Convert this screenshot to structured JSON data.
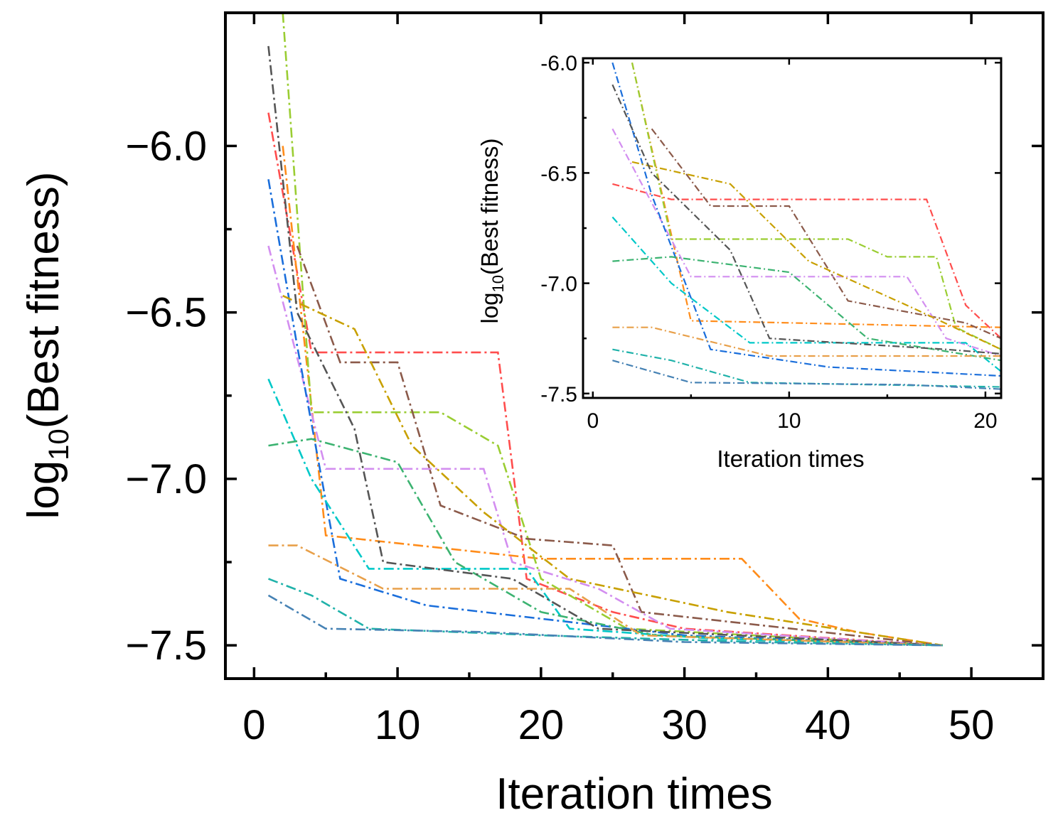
{
  "chart_data": [
    {
      "type": "line",
      "xlabel": "Iteration times",
      "ylabel_main": "log",
      "ylabel_sub": "10",
      "ylabel_rest": "(Best fitness)",
      "xlim": [
        -2,
        55
      ],
      "ylim": [
        -7.6,
        -5.6
      ],
      "xticks": [
        0,
        10,
        20,
        30,
        40,
        50
      ],
      "xtick_labels": [
        "0",
        "10",
        "20",
        "30",
        "40",
        "50"
      ],
      "yticks": [
        -6.0,
        -6.5,
        -7.0,
        -7.5
      ],
      "ytick_labels": [
        "−6.0",
        "−6.5",
        "−7.0",
        "−7.5"
      ],
      "line_style": "dash-dot",
      "series": [
        {
          "color": "#ff4d4d",
          "points": [
            [
              1,
              -5.9
            ],
            [
              4,
              -6.62
            ],
            [
              17,
              -6.62
            ],
            [
              19,
              -7.3
            ],
            [
              25,
              -7.4
            ],
            [
              30,
              -7.45
            ],
            [
              48,
              -7.5
            ]
          ]
        },
        {
          "color": "#ff8c1a",
          "points": [
            [
              2,
              -6.0
            ],
            [
              5,
              -7.17
            ],
            [
              20,
              -7.24
            ],
            [
              34,
              -7.24
            ],
            [
              38,
              -7.42
            ],
            [
              42,
              -7.46
            ],
            [
              48,
              -7.5
            ]
          ]
        },
        {
          "color": "#9acd32",
          "points": [
            [
              2,
              -5.6
            ],
            [
              4,
              -6.8
            ],
            [
              13,
              -6.8
            ],
            [
              17,
              -6.9
            ],
            [
              20,
              -7.3
            ],
            [
              26,
              -7.45
            ],
            [
              48,
              -7.5
            ]
          ]
        },
        {
          "color": "#8b5a4a",
          "points": [
            [
              3,
              -6.3
            ],
            [
              6,
              -6.65
            ],
            [
              10,
              -6.65
            ],
            [
              13,
              -7.08
            ],
            [
              19,
              -7.18
            ],
            [
              25,
              -7.2
            ],
            [
              27,
              -7.4
            ],
            [
              48,
              -7.5
            ]
          ]
        },
        {
          "color": "#d38ef0",
          "points": [
            [
              1,
              -6.3
            ],
            [
              5,
              -6.97
            ],
            [
              16,
              -6.97
            ],
            [
              18,
              -7.25
            ],
            [
              24,
              -7.33
            ],
            [
              29,
              -7.45
            ],
            [
              48,
              -7.5
            ]
          ]
        },
        {
          "color": "#1a6edb",
          "points": [
            [
              1,
              -6.1
            ],
            [
              3,
              -6.6
            ],
            [
              6,
              -7.3
            ],
            [
              12,
              -7.38
            ],
            [
              20,
              -7.42
            ],
            [
              30,
              -7.47
            ],
            [
              48,
              -7.5
            ]
          ]
        },
        {
          "color": "#00c8c8",
          "points": [
            [
              1,
              -6.7
            ],
            [
              4,
              -7.0
            ],
            [
              8,
              -7.27
            ],
            [
              19,
              -7.27
            ],
            [
              22,
              -7.45
            ],
            [
              32,
              -7.48
            ],
            [
              48,
              -7.5
            ]
          ]
        },
        {
          "color": "#3cb371",
          "points": [
            [
              1,
              -6.9
            ],
            [
              4,
              -6.88
            ],
            [
              10,
              -6.95
            ],
            [
              14,
              -7.25
            ],
            [
              20,
              -7.4
            ],
            [
              28,
              -7.47
            ],
            [
              48,
              -7.5
            ]
          ]
        },
        {
          "color": "#c8a000",
          "points": [
            [
              2,
              -6.45
            ],
            [
              7,
              -6.55
            ],
            [
              11,
              -6.9
            ],
            [
              16,
              -7.1
            ],
            [
              22,
              -7.3
            ],
            [
              33,
              -7.4
            ],
            [
              48,
              -7.5
            ]
          ]
        },
        {
          "color": "#555555",
          "points": [
            [
              1,
              -5.7
            ],
            [
              3,
              -6.5
            ],
            [
              7,
              -6.85
            ],
            [
              9,
              -7.25
            ],
            [
              18,
              -7.3
            ],
            [
              24,
              -7.45
            ],
            [
              48,
              -7.5
            ]
          ]
        },
        {
          "color": "#e8a04a",
          "points": [
            [
              1,
              -7.2
            ],
            [
              3,
              -7.2
            ],
            [
              9,
              -7.33
            ],
            [
              22,
              -7.33
            ],
            [
              27,
              -7.47
            ],
            [
              48,
              -7.5
            ]
          ]
        },
        {
          "color": "#20b2aa",
          "points": [
            [
              1,
              -7.3
            ],
            [
              4,
              -7.35
            ],
            [
              8,
              -7.45
            ],
            [
              20,
              -7.47
            ],
            [
              35,
              -7.49
            ],
            [
              48,
              -7.5
            ]
          ]
        },
        {
          "color": "#4682b4",
          "points": [
            [
              1,
              -7.35
            ],
            [
              5,
              -7.45
            ],
            [
              16,
              -7.46
            ],
            [
              30,
              -7.49
            ],
            [
              48,
              -7.5
            ]
          ]
        }
      ]
    },
    {
      "type": "line",
      "xlabel": "Iteration times",
      "ylabel_main": "log",
      "ylabel_sub": "10",
      "ylabel_rest": "(Best fitness)",
      "xlim": [
        -0.5,
        20.8
      ],
      "ylim": [
        -7.52,
        -5.98
      ],
      "xticks": [
        0,
        10,
        20
      ],
      "xtick_labels": [
        "0",
        "10",
        "20"
      ],
      "yticks": [
        -6.0,
        -6.5,
        -7.0,
        -7.5
      ],
      "ytick_labels": [
        "-6.0",
        "-6.5",
        "-7.0",
        "-7.5"
      ],
      "line_style": "dash-dot",
      "series": [
        {
          "color": "#ff4d4d",
          "points": [
            [
              1,
              -6.55
            ],
            [
              4,
              -6.62
            ],
            [
              17,
              -6.62
            ],
            [
              19,
              -7.1
            ],
            [
              20.8,
              -7.25
            ]
          ]
        },
        {
          "color": "#ff8c1a",
          "points": [
            [
              2,
              -6.0
            ],
            [
              5,
              -7.17
            ],
            [
              20.8,
              -7.2
            ]
          ]
        },
        {
          "color": "#9acd32",
          "points": [
            [
              2,
              -6.0
            ],
            [
              4,
              -6.8
            ],
            [
              13,
              -6.8
            ],
            [
              15,
              -6.88
            ],
            [
              17.5,
              -6.88
            ],
            [
              18.5,
              -7.2
            ],
            [
              20.8,
              -7.3
            ]
          ]
        },
        {
          "color": "#8b5a4a",
          "points": [
            [
              3,
              -6.3
            ],
            [
              6,
              -6.65
            ],
            [
              10,
              -6.65
            ],
            [
              13,
              -7.08
            ],
            [
              19,
              -7.18
            ],
            [
              20.8,
              -7.25
            ]
          ]
        },
        {
          "color": "#d38ef0",
          "points": [
            [
              1,
              -6.3
            ],
            [
              5,
              -6.97
            ],
            [
              16,
              -6.97
            ],
            [
              18,
              -7.25
            ],
            [
              20.8,
              -7.33
            ]
          ]
        },
        {
          "color": "#1a6edb",
          "points": [
            [
              1,
              -6.0
            ],
            [
              3,
              -6.6
            ],
            [
              6,
              -7.3
            ],
            [
              12,
              -7.38
            ],
            [
              20.8,
              -7.42
            ]
          ]
        },
        {
          "color": "#00c8c8",
          "points": [
            [
              1,
              -6.7
            ],
            [
              4,
              -7.0
            ],
            [
              8,
              -7.27
            ],
            [
              19,
              -7.27
            ],
            [
              20.8,
              -7.4
            ]
          ]
        },
        {
          "color": "#3cb371",
          "points": [
            [
              1,
              -6.9
            ],
            [
              4,
              -6.88
            ],
            [
              10,
              -6.95
            ],
            [
              14,
              -7.25
            ],
            [
              20.8,
              -7.35
            ]
          ]
        },
        {
          "color": "#c8a000",
          "points": [
            [
              2,
              -6.45
            ],
            [
              7,
              -6.55
            ],
            [
              11,
              -6.9
            ],
            [
              16,
              -7.1
            ],
            [
              20.8,
              -7.3
            ]
          ]
        },
        {
          "color": "#555555",
          "points": [
            [
              1,
              -6.1
            ],
            [
              3,
              -6.5
            ],
            [
              7,
              -6.85
            ],
            [
              9,
              -7.25
            ],
            [
              18,
              -7.3
            ],
            [
              20.8,
              -7.32
            ]
          ]
        },
        {
          "color": "#e8a04a",
          "points": [
            [
              1,
              -7.2
            ],
            [
              3,
              -7.2
            ],
            [
              9,
              -7.33
            ],
            [
              20.8,
              -7.33
            ]
          ]
        },
        {
          "color": "#20b2aa",
          "points": [
            [
              1,
              -7.3
            ],
            [
              4,
              -7.35
            ],
            [
              8,
              -7.45
            ],
            [
              20.8,
              -7.47
            ]
          ]
        },
        {
          "color": "#4682b4",
          "points": [
            [
              1,
              -7.35
            ],
            [
              5,
              -7.45
            ],
            [
              16,
              -7.46
            ],
            [
              20.8,
              -7.48
            ]
          ]
        }
      ]
    }
  ]
}
